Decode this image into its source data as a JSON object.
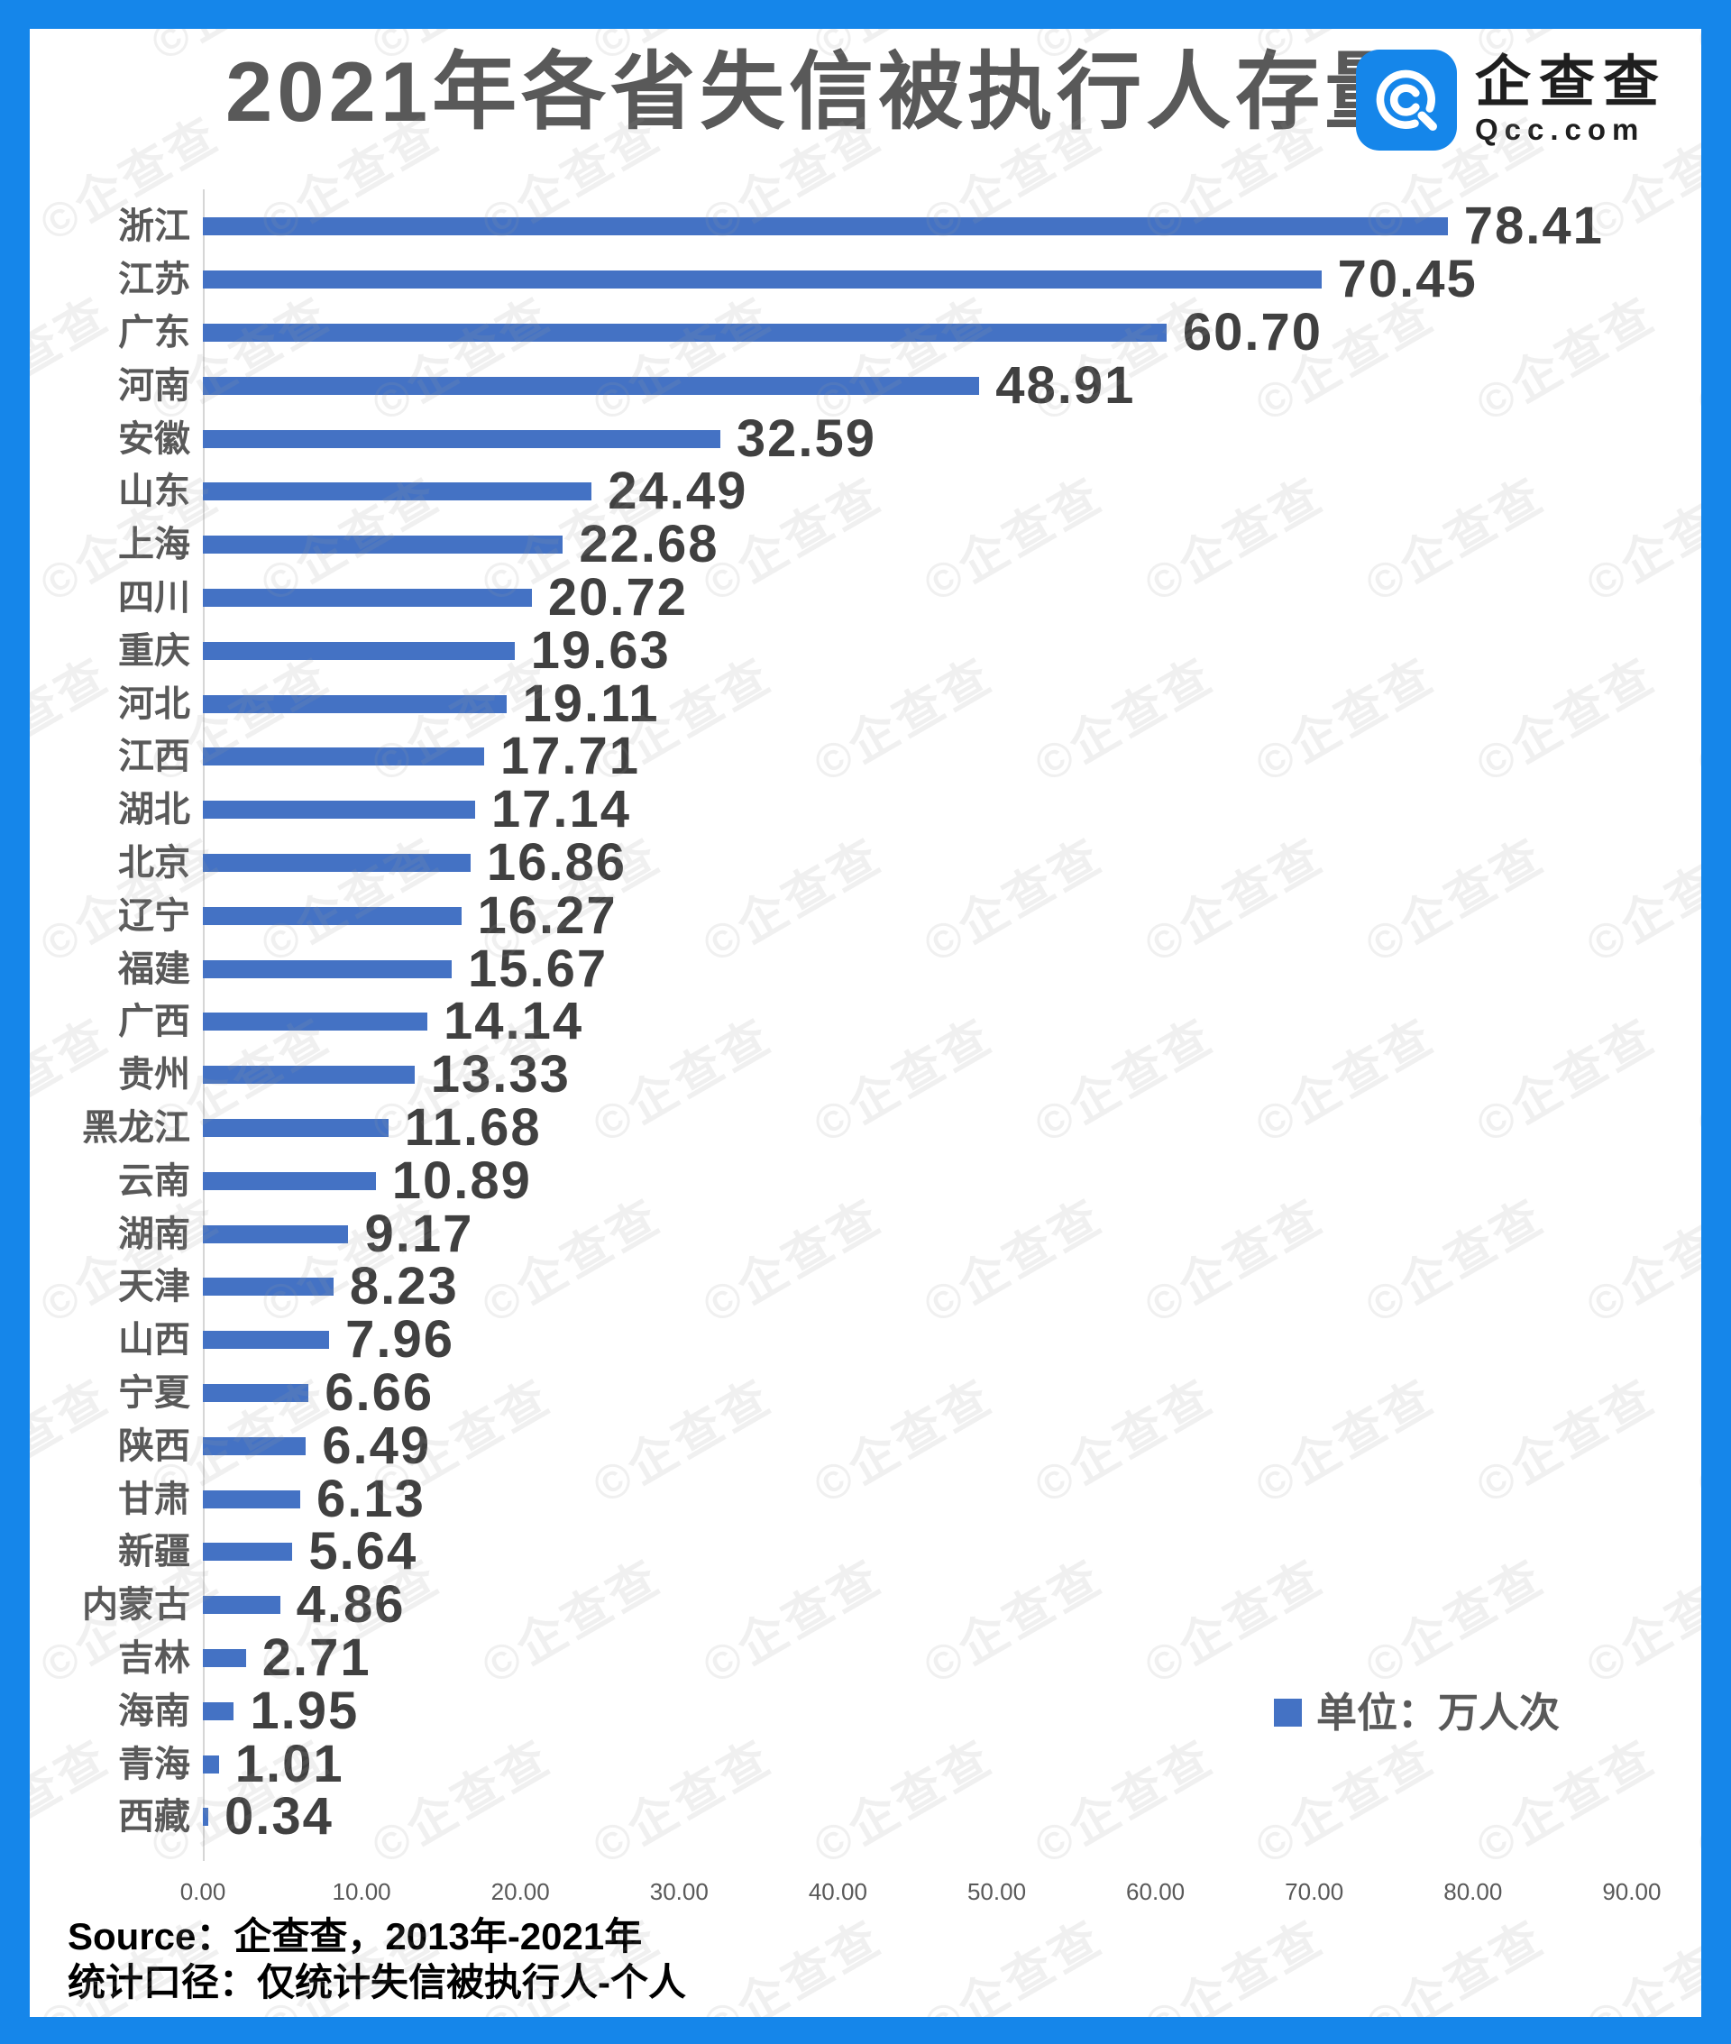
{
  "header": {
    "title": "2021年各省失信被执行人存量",
    "logo": {
      "name": "企查查",
      "domain": "Qcc.com"
    }
  },
  "chart_data": {
    "type": "bar",
    "orientation": "horizontal",
    "title": "2021年各省失信被执行人存量",
    "unit_legend": "单位：万人次",
    "legend_position": "inside-bottom-right",
    "grid": false,
    "xlim": [
      0,
      90
    ],
    "x_ticks": [
      "0.00",
      "10.00",
      "20.00",
      "30.00",
      "40.00",
      "50.00",
      "60.00",
      "70.00",
      "80.00",
      "90.00"
    ],
    "categories": [
      "浙江",
      "江苏",
      "广东",
      "河南",
      "安徽",
      "山东",
      "上海",
      "四川",
      "重庆",
      "河北",
      "江西",
      "湖北",
      "北京",
      "辽宁",
      "福建",
      "广西",
      "贵州",
      "黑龙江",
      "云南",
      "湖南",
      "天津",
      "山西",
      "宁夏",
      "陕西",
      "甘肃",
      "新疆",
      "内蒙古",
      "吉林",
      "海南",
      "青海",
      "西藏"
    ],
    "values": [
      78.41,
      70.45,
      60.7,
      48.91,
      32.59,
      24.49,
      22.68,
      20.72,
      19.63,
      19.11,
      17.71,
      17.14,
      16.86,
      16.27,
      15.67,
      14.14,
      13.33,
      11.68,
      10.89,
      9.17,
      8.23,
      7.96,
      6.66,
      6.49,
      6.13,
      5.64,
      4.86,
      2.71,
      1.95,
      1.01,
      0.34
    ],
    "value_labels": [
      "78.41",
      "70.45",
      "60.70",
      "48.91",
      "32.59",
      "24.49",
      "22.68",
      "20.72",
      "19.63",
      "19.11",
      "17.71",
      "17.14",
      "16.86",
      "16.27",
      "15.67",
      "14.14",
      "13.33",
      "11.68",
      "10.89",
      "9.17",
      "8.23",
      "7.96",
      "6.66",
      "6.49",
      "6.13",
      "5.64",
      "4.86",
      "2.71",
      "1.95",
      "1.01",
      "0.34"
    ],
    "bar_color": "#4472C4"
  },
  "footer": {
    "source_line1": "Source：企查查，2013年-2021年",
    "source_line2": "统计口径：仅统计失信被执行人-个人"
  },
  "watermark": {
    "text": "©企查查"
  },
  "colors": {
    "frame_blue": "#1586EA",
    "bar_blue": "#4472C4",
    "title_gray": "#595959",
    "value_gray": "#404040",
    "axis_line_gray": "#D6D6D6",
    "source_black": "#000000"
  }
}
